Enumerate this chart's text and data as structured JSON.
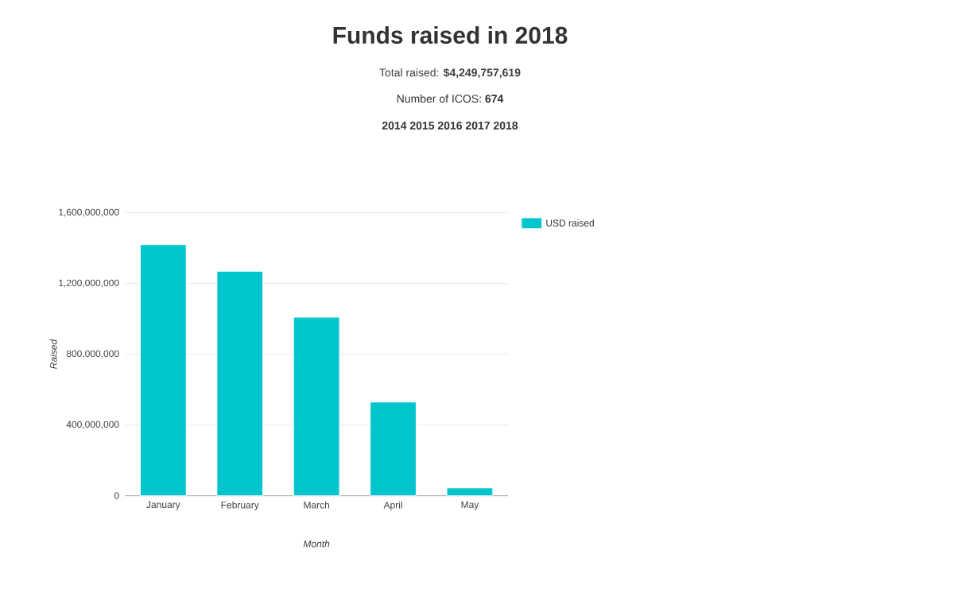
{
  "chart_data": {
    "type": "bar",
    "title": "Funds raised in 2018",
    "subtitle": "Total raised: **$4,249,757,619**",
    "annotations": [
      "Number of ICOS: **674**",
      "2014 2015 2016 2017 2018"
    ],
    "xlabel": "Month",
    "ylabel": "Raised",
    "categories": [
      "January",
      "February",
      "March",
      "April",
      "May"
    ],
    "series": [
      {
        "name": "USD raised",
        "color": "#00c5cd",
        "values": [
          1420000000,
          1270000000,
          1010000000,
          530000000,
          45000000
        ]
      }
    ],
    "ylim": [
      0,
      1600000000
    ],
    "yticks": [
      {
        "value": 0,
        "label": "0"
      },
      {
        "value": 400000000,
        "label": "400,000,000"
      },
      {
        "value": 800000000,
        "label": "800,000,000"
      },
      {
        "value": 1200000000,
        "label": "1,200,000,000"
      },
      {
        "value": 1600000000,
        "label": "1,600,000,000"
      }
    ],
    "grid": "y",
    "legend": "top right"
  }
}
